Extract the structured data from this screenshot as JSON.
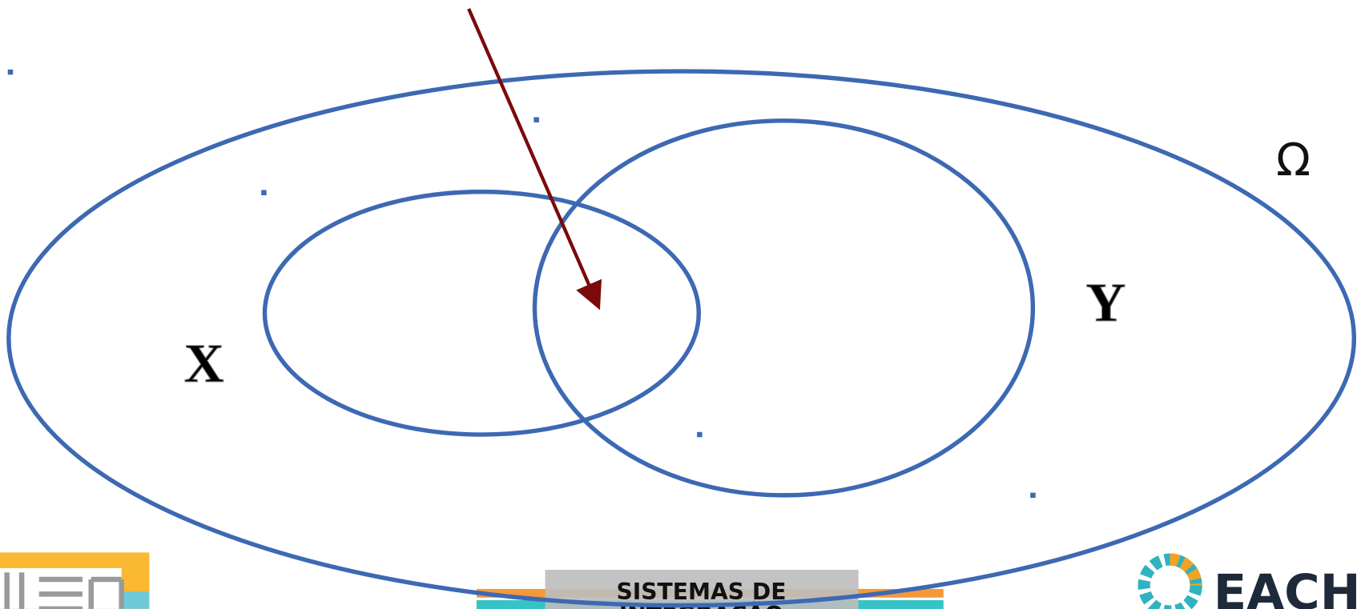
{
  "diagram": {
    "universe_label": "Ω",
    "set_x_label": "X",
    "set_y_label": "Y"
  },
  "footer": {
    "course_line1": "SISTEMAS DE",
    "course_line2": "INTEGRAÇÃO",
    "right_logo_text": "EACH"
  }
}
